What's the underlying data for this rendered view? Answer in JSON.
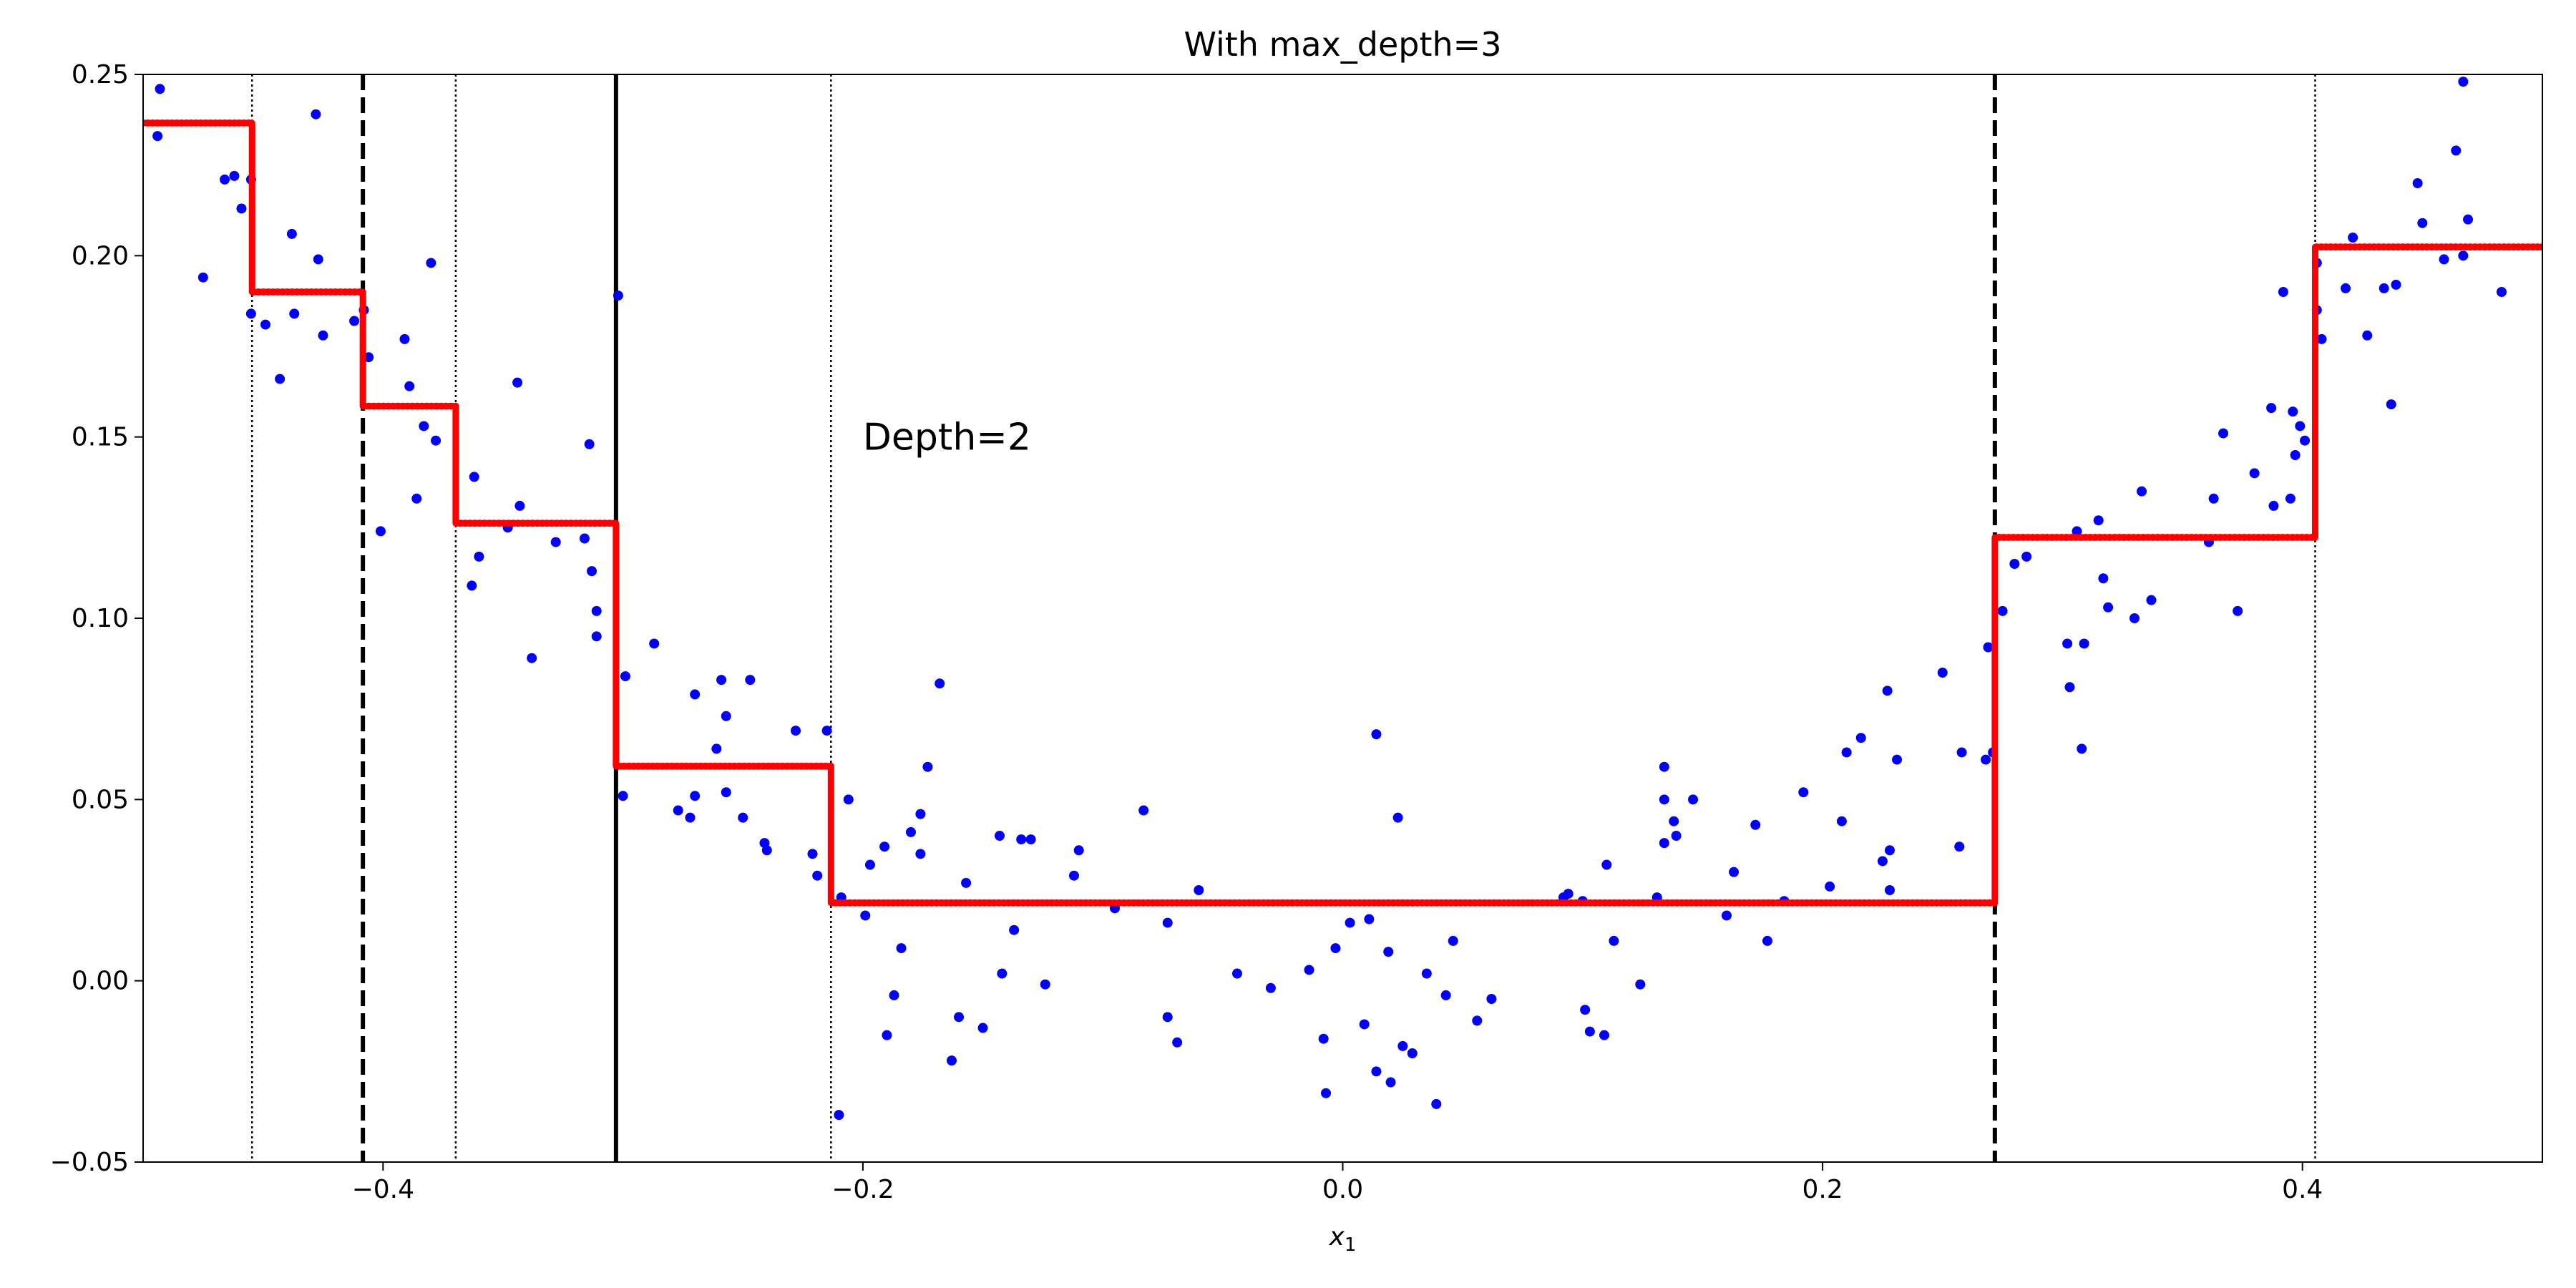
{
  "chart_data": {
    "type": "scatter",
    "title": "With max_depth=3",
    "xlabel": "x",
    "xlabel_subscript": "1",
    "ylabel": "",
    "xlim": [
      -0.5,
      0.5
    ],
    "ylim": [
      -0.05,
      0.25
    ],
    "xticks": [
      -0.4,
      -0.2,
      0.0,
      0.2,
      0.4
    ],
    "xtick_labels": [
      "−0.4",
      "−0.2",
      "0.0",
      "0.2",
      "0.4"
    ],
    "yticks": [
      -0.05,
      0.0,
      0.05,
      0.1,
      0.15,
      0.2,
      0.25
    ],
    "ytick_labels": [
      "−0.05",
      "0.00",
      "0.05",
      "0.10",
      "0.15",
      "0.20",
      "0.25"
    ],
    "grid": false,
    "colors": {
      "points": "#0000ff",
      "prediction": "#ff0000",
      "splits": "#000000"
    },
    "annotations": [
      {
        "text": "Depth=2",
        "x": -0.2,
        "y": 0.15
      }
    ],
    "split_lines": [
      {
        "x": -0.3029,
        "style": "solid",
        "depth": 0
      },
      {
        "x": -0.4084,
        "style": "dashed",
        "depth": 1
      },
      {
        "x": 0.2718,
        "style": "dashed",
        "depth": 1
      },
      {
        "x": -0.4546,
        "style": "dotted",
        "depth": 2
      },
      {
        "x": -0.3697,
        "style": "dotted",
        "depth": 2
      },
      {
        "x": -0.2133,
        "style": "dotted",
        "depth": 2
      },
      {
        "x": 0.4053,
        "style": "dotted",
        "depth": 2
      }
    ],
    "prediction_steps": [
      {
        "x0": -0.5,
        "x1": -0.4546,
        "y": 0.2366
      },
      {
        "x0": -0.4546,
        "x1": -0.4084,
        "y": 0.19
      },
      {
        "x0": -0.4084,
        "x1": -0.3697,
        "y": 0.1585
      },
      {
        "x0": -0.3697,
        "x1": -0.3029,
        "y": 0.1262
      },
      {
        "x0": -0.3029,
        "x1": -0.2133,
        "y": 0.0592
      },
      {
        "x0": -0.2133,
        "x1": 0.2718,
        "y": 0.0215
      },
      {
        "x0": 0.2718,
        "x1": 0.4053,
        "y": 0.1223
      },
      {
        "x0": 0.4053,
        "x1": 0.5,
        "y": 0.2024
      }
    ],
    "points": [
      [
        -0.493,
        0.246
      ],
      [
        -0.494,
        0.233
      ],
      [
        -0.475,
        0.194
      ],
      [
        -0.466,
        0.221
      ],
      [
        -0.462,
        0.222
      ],
      [
        -0.459,
        0.213
      ],
      [
        -0.455,
        0.221
      ],
      [
        -0.455,
        0.184
      ],
      [
        -0.449,
        0.181
      ],
      [
        -0.443,
        0.166
      ],
      [
        -0.438,
        0.206
      ],
      [
        -0.437,
        0.184
      ],
      [
        -0.428,
        0.239
      ],
      [
        -0.427,
        0.199
      ],
      [
        -0.425,
        0.178
      ],
      [
        -0.412,
        0.182
      ],
      [
        -0.408,
        0.185
      ],
      [
        -0.406,
        0.172
      ],
      [
        -0.401,
        0.124
      ],
      [
        -0.391,
        0.177
      ],
      [
        -0.389,
        0.164
      ],
      [
        -0.386,
        0.133
      ],
      [
        -0.383,
        0.153
      ],
      [
        -0.38,
        0.198
      ],
      [
        -0.378,
        0.149
      ],
      [
        -0.363,
        0.109
      ],
      [
        -0.362,
        0.139
      ],
      [
        -0.36,
        0.117
      ],
      [
        -0.348,
        0.125
      ],
      [
        -0.344,
        0.165
      ],
      [
        -0.343,
        0.131
      ],
      [
        -0.338,
        0.089
      ],
      [
        -0.328,
        0.121
      ],
      [
        -0.316,
        0.122
      ],
      [
        -0.314,
        0.148
      ],
      [
        -0.313,
        0.113
      ],
      [
        -0.311,
        0.095
      ],
      [
        -0.311,
        0.102
      ],
      [
        -0.302,
        0.189
      ],
      [
        -0.299,
        0.084
      ],
      [
        -0.3,
        0.051
      ],
      [
        -0.287,
        0.093
      ],
      [
        -0.277,
        0.047
      ],
      [
        -0.272,
        0.045
      ],
      [
        -0.27,
        0.079
      ],
      [
        -0.27,
        0.051
      ],
      [
        -0.261,
        0.064
      ],
      [
        -0.259,
        0.083
      ],
      [
        -0.257,
        0.073
      ],
      [
        -0.257,
        0.052
      ],
      [
        -0.25,
        0.045
      ],
      [
        -0.247,
        0.083
      ],
      [
        -0.241,
        0.038
      ],
      [
        -0.24,
        0.036
      ],
      [
        -0.228,
        0.069
      ],
      [
        -0.221,
        0.035
      ],
      [
        -0.219,
        0.029
      ],
      [
        -0.215,
        0.069
      ],
      [
        -0.209,
        0.023
      ],
      [
        -0.21,
        -0.037
      ],
      [
        -0.206,
        0.05
      ],
      [
        -0.199,
        0.018
      ],
      [
        -0.197,
        0.032
      ],
      [
        -0.191,
        0.037
      ],
      [
        -0.19,
        -0.015
      ],
      [
        -0.187,
        -0.004
      ],
      [
        -0.184,
        0.009
      ],
      [
        -0.18,
        0.041
      ],
      [
        -0.176,
        0.046
      ],
      [
        -0.176,
        0.035
      ],
      [
        -0.173,
        0.059
      ],
      [
        -0.168,
        0.082
      ],
      [
        -0.163,
        -0.022
      ],
      [
        -0.16,
        -0.01
      ],
      [
        -0.157,
        0.027
      ],
      [
        -0.15,
        -0.013
      ],
      [
        -0.143,
        0.04
      ],
      [
        -0.142,
        0.002
      ],
      [
        -0.137,
        0.014
      ],
      [
        -0.134,
        0.039
      ],
      [
        -0.13,
        0.039
      ],
      [
        -0.124,
        -0.001
      ],
      [
        -0.112,
        0.029
      ],
      [
        -0.11,
        0.036
      ],
      [
        -0.095,
        0.02
      ],
      [
        -0.083,
        0.047
      ],
      [
        -0.073,
        0.016
      ],
      [
        -0.073,
        -0.01
      ],
      [
        -0.069,
        -0.017
      ],
      [
        -0.06,
        0.025
      ],
      [
        -0.044,
        0.002
      ],
      [
        -0.03,
        -0.002
      ],
      [
        -0.014,
        0.003
      ],
      [
        -0.008,
        -0.016
      ],
      [
        -0.007,
        -0.031
      ],
      [
        -0.003,
        0.009
      ],
      [
        0.003,
        0.016
      ],
      [
        0.009,
        -0.012
      ],
      [
        0.011,
        0.017
      ],
      [
        0.014,
        -0.025
      ],
      [
        0.014,
        0.068
      ],
      [
        0.019,
        0.008
      ],
      [
        0.02,
        -0.028
      ],
      [
        0.023,
        0.045
      ],
      [
        0.025,
        -0.018
      ],
      [
        0.029,
        -0.02
      ],
      [
        0.035,
        0.002
      ],
      [
        0.039,
        -0.034
      ],
      [
        0.043,
        -0.004
      ],
      [
        0.046,
        0.011
      ],
      [
        0.056,
        -0.011
      ],
      [
        0.062,
        -0.005
      ],
      [
        0.092,
        0.023
      ],
      [
        0.094,
        0.024
      ],
      [
        0.1,
        0.022
      ],
      [
        0.101,
        -0.008
      ],
      [
        0.103,
        -0.014
      ],
      [
        0.109,
        -0.015
      ],
      [
        0.11,
        0.032
      ],
      [
        0.113,
        0.011
      ],
      [
        0.124,
        -0.001
      ],
      [
        0.131,
        0.023
      ],
      [
        0.134,
        0.05
      ],
      [
        0.134,
        0.038
      ],
      [
        0.134,
        0.059
      ],
      [
        0.138,
        0.044
      ],
      [
        0.139,
        0.04
      ],
      [
        0.146,
        0.05
      ],
      [
        0.16,
        0.018
      ],
      [
        0.163,
        0.03
      ],
      [
        0.172,
        0.043
      ],
      [
        0.177,
        0.011
      ],
      [
        0.184,
        0.022
      ],
      [
        0.192,
        0.052
      ],
      [
        0.203,
        0.026
      ],
      [
        0.208,
        0.044
      ],
      [
        0.21,
        0.063
      ],
      [
        0.216,
        0.067
      ],
      [
        0.225,
        0.033
      ],
      [
        0.227,
        0.08
      ],
      [
        0.228,
        0.036
      ],
      [
        0.228,
        0.025
      ],
      [
        0.231,
        0.061
      ],
      [
        0.25,
        0.085
      ],
      [
        0.257,
        0.037
      ],
      [
        0.258,
        0.063
      ],
      [
        0.268,
        0.061
      ],
      [
        0.269,
        0.092
      ],
      [
        0.271,
        0.063
      ],
      [
        0.275,
        0.102
      ],
      [
        0.28,
        0.115
      ],
      [
        0.285,
        0.117
      ],
      [
        0.302,
        0.093
      ],
      [
        0.303,
        0.081
      ],
      [
        0.306,
        0.124
      ],
      [
        0.308,
        0.064
      ],
      [
        0.309,
        0.093
      ],
      [
        0.315,
        0.127
      ],
      [
        0.317,
        0.111
      ],
      [
        0.319,
        0.103
      ],
      [
        0.33,
        0.1
      ],
      [
        0.333,
        0.135
      ],
      [
        0.337,
        0.105
      ],
      [
        0.361,
        0.121
      ],
      [
        0.363,
        0.133
      ],
      [
        0.367,
        0.151
      ],
      [
        0.373,
        0.102
      ],
      [
        0.38,
        0.14
      ],
      [
        0.387,
        0.158
      ],
      [
        0.388,
        0.131
      ],
      [
        0.392,
        0.19
      ],
      [
        0.395,
        0.133
      ],
      [
        0.396,
        0.157
      ],
      [
        0.397,
        0.145
      ],
      [
        0.399,
        0.153
      ],
      [
        0.401,
        0.149
      ],
      [
        0.406,
        0.198
      ],
      [
        0.406,
        0.185
      ],
      [
        0.408,
        0.177
      ],
      [
        0.418,
        0.191
      ],
      [
        0.421,
        0.205
      ],
      [
        0.427,
        0.178
      ],
      [
        0.434,
        0.191
      ],
      [
        0.437,
        0.159
      ],
      [
        0.439,
        0.192
      ],
      [
        0.448,
        0.22
      ],
      [
        0.45,
        0.209
      ],
      [
        0.459,
        0.199
      ],
      [
        0.464,
        0.229
      ],
      [
        0.467,
        0.2
      ],
      [
        0.467,
        0.248
      ],
      [
        0.469,
        0.21
      ],
      [
        0.483,
        0.19
      ]
    ]
  }
}
